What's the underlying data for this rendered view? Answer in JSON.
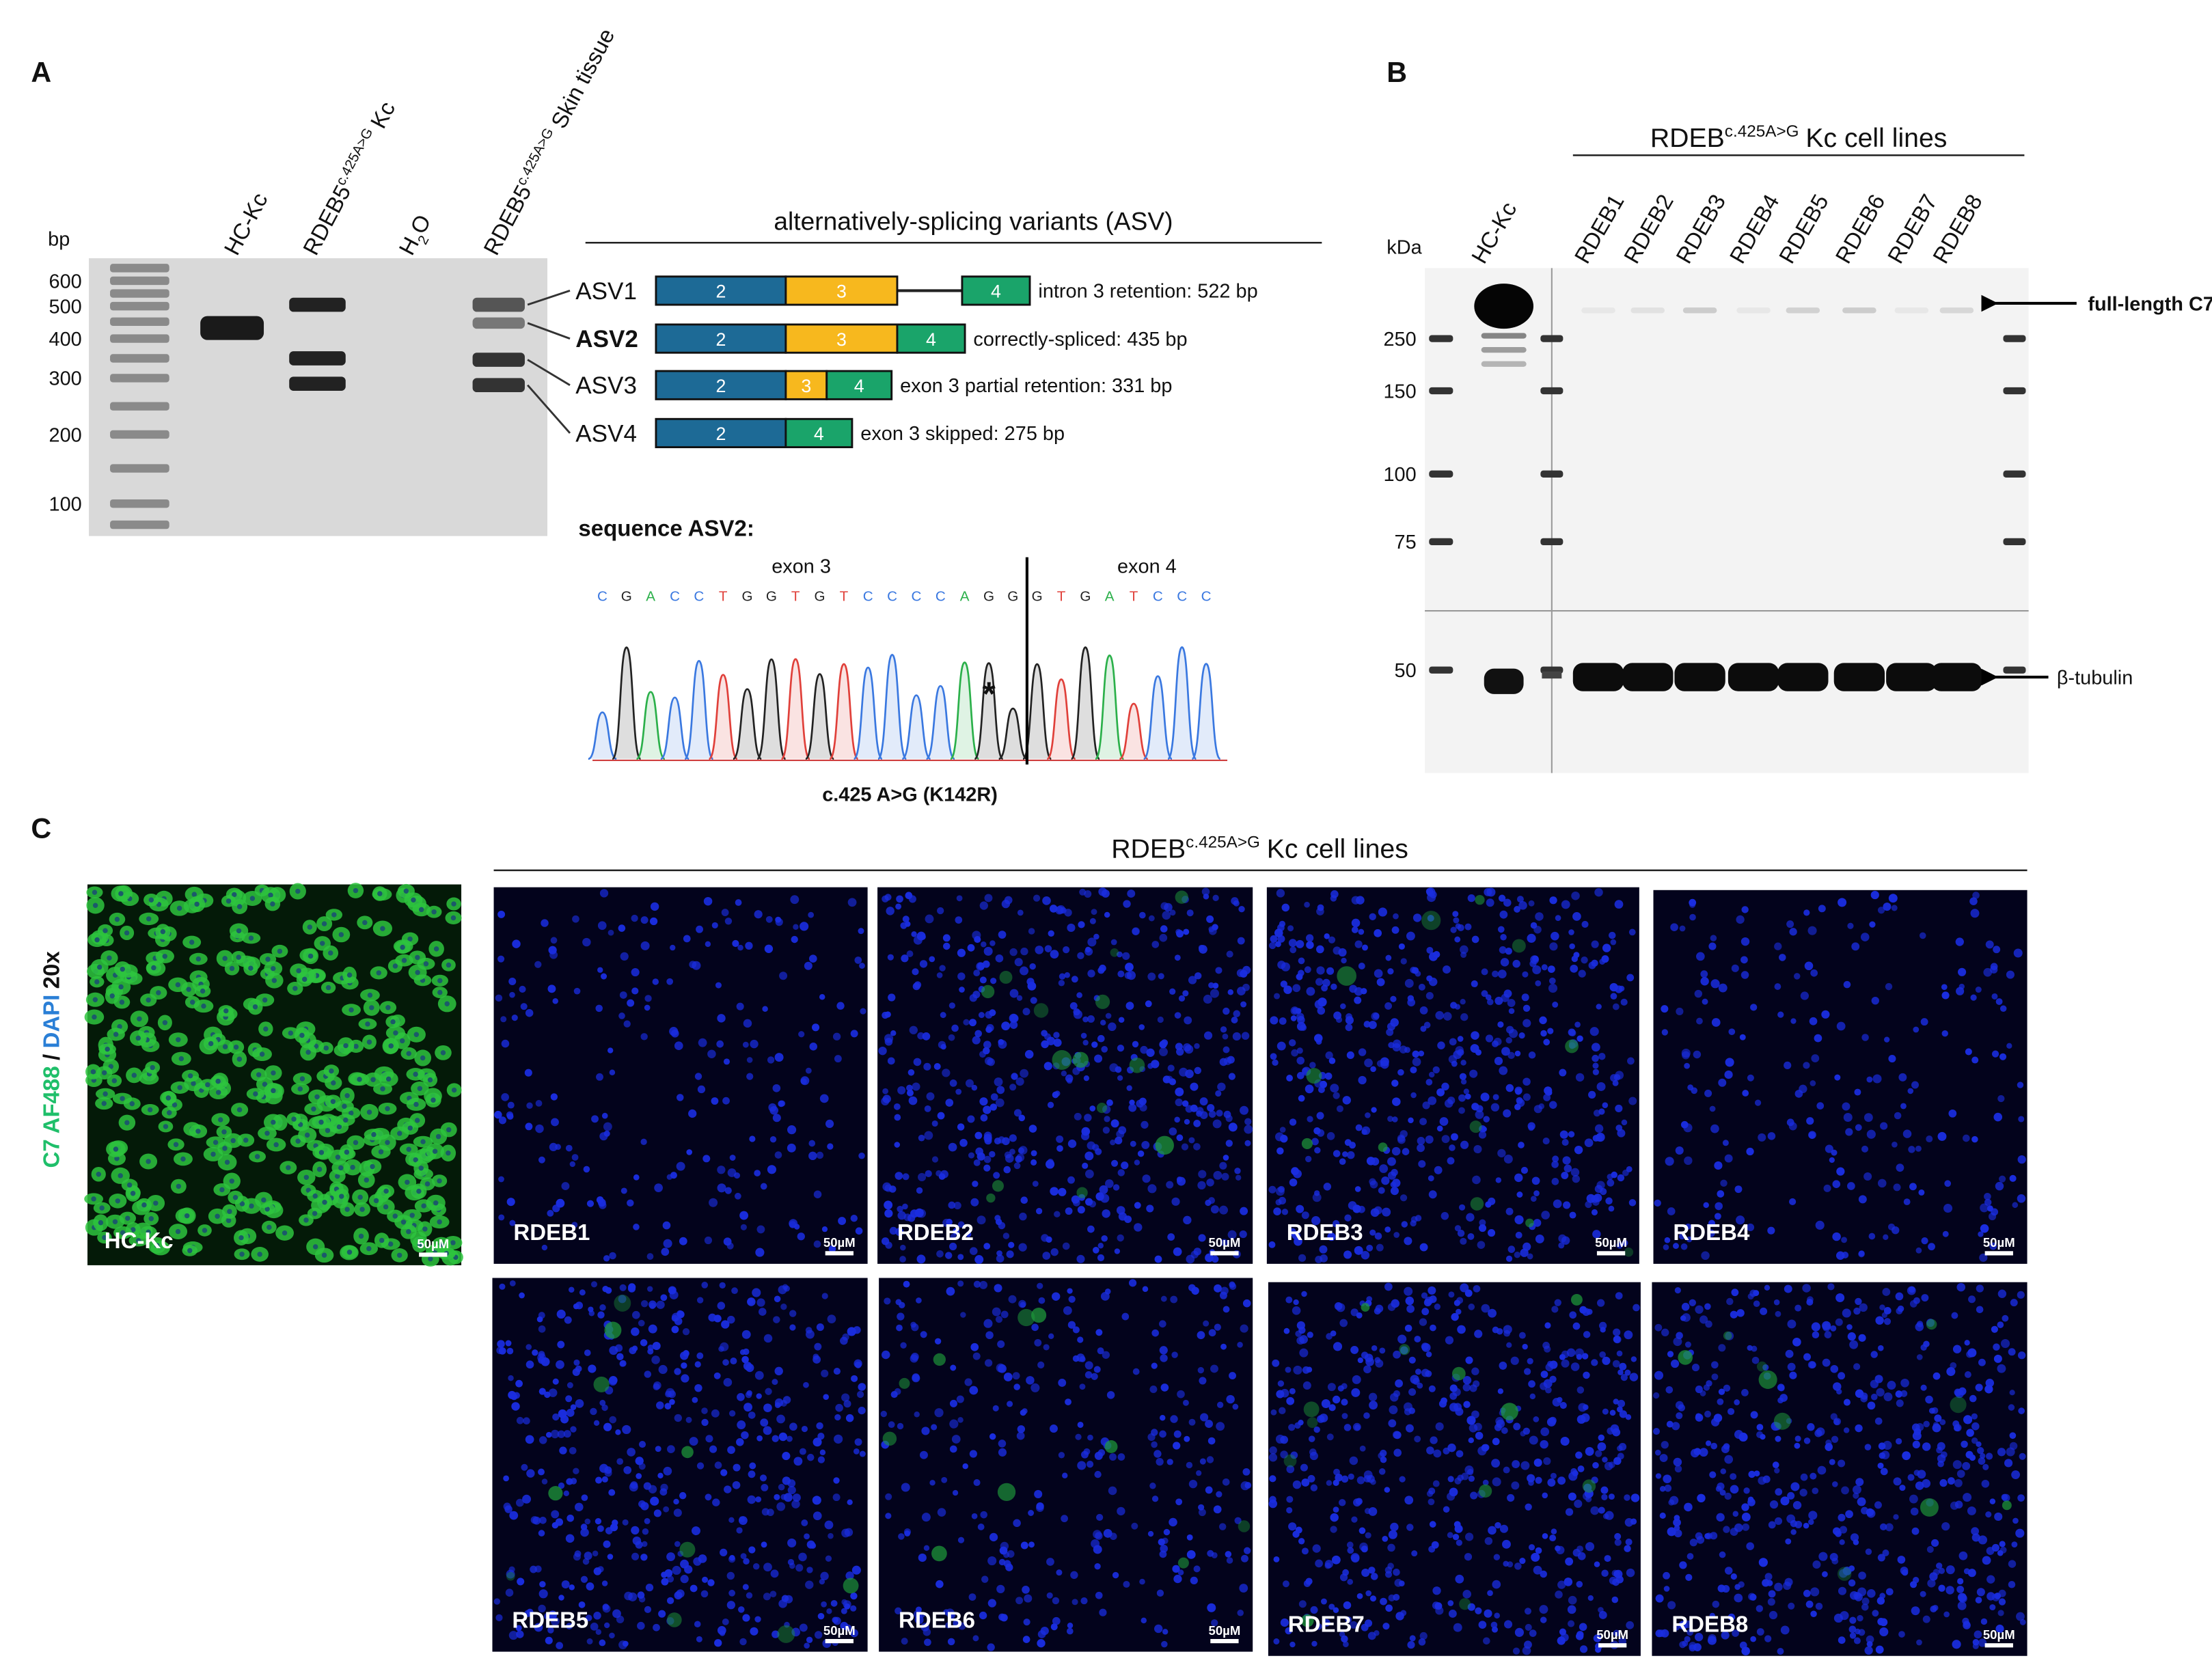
{
  "panel_a": {
    "label": "A",
    "unit": "bp",
    "ladder": [
      600,
      500,
      400,
      300,
      200,
      100
    ],
    "lanes": [
      {
        "text": "HC-Kc"
      },
      {
        "text": "RDEB5",
        "sup": "c.425A>G",
        "after": "Kc"
      },
      {
        "text": "H",
        "sub": "2",
        "after": "O"
      },
      {
        "text": "RDEB5",
        "sup": "c.425A>G",
        "after": "Skin tissue"
      }
    ],
    "asv_title": "alternatively-splicing variants (ASV)",
    "variants": [
      {
        "name": "ASV1",
        "exons": [
          2,
          3,
          4
        ],
        "description": "intron 3 retention: 522 bp"
      },
      {
        "name": "ASV2",
        "exons": [
          2,
          3,
          4
        ],
        "description": "correctly-spliced: 435 bp"
      },
      {
        "name": "ASV3",
        "exons": [
          2,
          3,
          4
        ],
        "description": "exon 3 partial retention: 331 bp"
      },
      {
        "name": "ASV4",
        "exons": [
          2,
          4
        ],
        "description": "exon 3 skipped: 275 bp"
      }
    ],
    "sequence_title": "sequence ASV2:",
    "exon_labels": [
      "exon 3",
      "exon 4"
    ],
    "bases": [
      "C",
      "G",
      "A",
      "C",
      "C",
      "T",
      "G",
      "G",
      "T",
      "G",
      "T",
      "C",
      "C",
      "C",
      "C",
      "A",
      "G",
      "G",
      "G",
      "T",
      "G",
      "A",
      "T",
      "C",
      "C",
      "C"
    ],
    "mark": "*",
    "mutation": "c.425 A>G (K142R)"
  },
  "panel_b": {
    "label": "B",
    "unit": "kDa",
    "markers": [
      250,
      150,
      100,
      75,
      50
    ],
    "control": "HC-Kc",
    "group": {
      "text": "RDEB",
      "sup": "c.425A>G",
      "after": "Kc cell lines"
    },
    "lanes": [
      "RDEB1",
      "RDEB2",
      "RDEB3",
      "RDEB4",
      "RDEB5",
      "RDEB6",
      "RDEB7",
      "RDEB8"
    ],
    "targets": [
      "full-length C7",
      "β-tubulin"
    ]
  },
  "panel_c": {
    "label": "C",
    "stain": [
      "C7 AF488",
      "/",
      "DAPI",
      "20x"
    ],
    "group": {
      "text": "RDEB",
      "sup": "c.425A>G",
      "after": "Kc cell lines"
    },
    "control": "HC-Kc",
    "images": [
      "RDEB1",
      "RDEB2",
      "RDEB3",
      "RDEB4",
      "RDEB5",
      "RDEB6",
      "RDEB7",
      "RDEB8"
    ],
    "scale": "50µM"
  }
}
